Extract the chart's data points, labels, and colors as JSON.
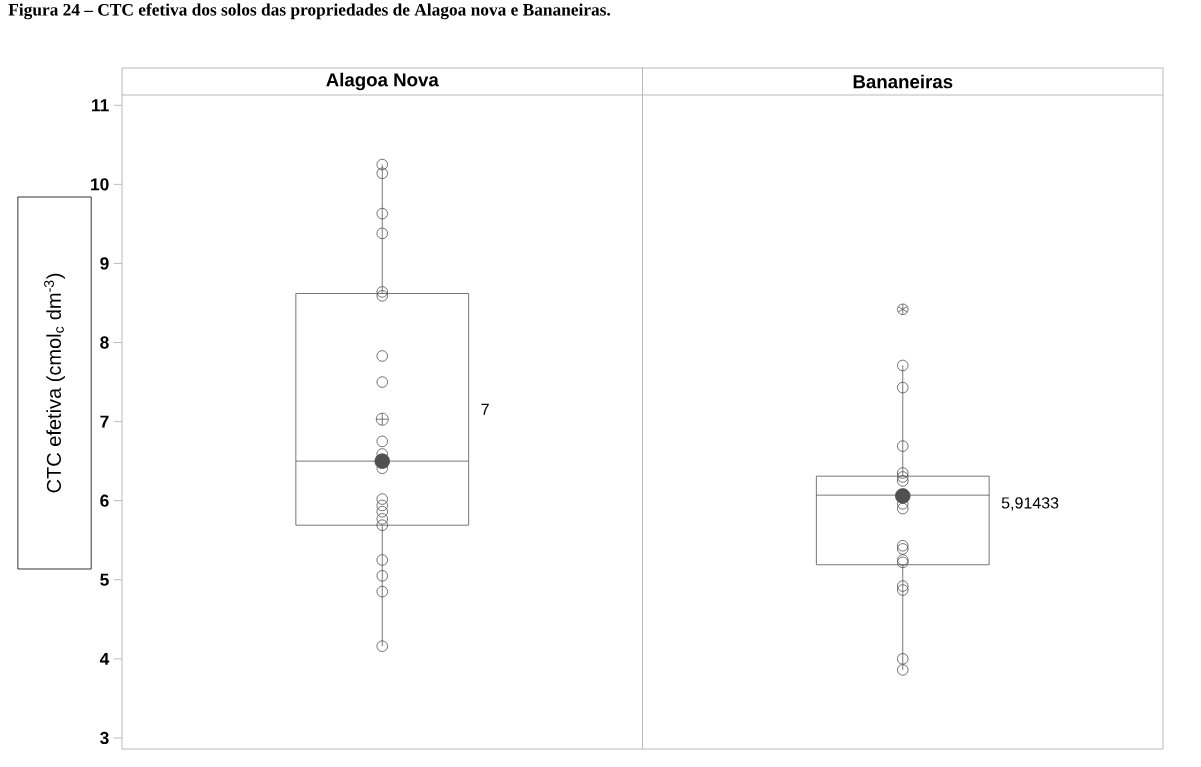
{
  "chart_data": {
    "type": "box",
    "title": "Figura 24 – CTC efetiva dos solos das propriedades de Alagoa nova e Bananeiras.",
    "ylabel": "CTC efetiva (cmol$_{c}$ dm$^{-3}$)",
    "categories": [
      "Alagoa Nova",
      "Bananeiras"
    ],
    "boxes": [
      {
        "low": 4.16,
        "q1": 5.69,
        "median": 6.5,
        "q3": 8.62,
        "high": 10.25,
        "mean": 7.03
      },
      {
        "low": 3.86,
        "q1": 5.19,
        "median": 6.07,
        "q3": 6.31,
        "high": 7.71,
        "outliers": [
          8.42
        ]
      }
    ],
    "series": [
      {
        "type": "scatter",
        "color": "#505050",
        "x": [
          "Alagoa Nova",
          "Alagoa Nova",
          "Alagoa Nova",
          "Alagoa Nova",
          "Alagoa Nova",
          "Alagoa Nova",
          "Alagoa Nova",
          "Alagoa Nova",
          "Alagoa Nova",
          "Alagoa Nova",
          "Alagoa Nova",
          "Alagoa Nova",
          "Alagoa Nova",
          "Alagoa Nova",
          "Alagoa Nova",
          "Alagoa Nova",
          "Alagoa Nova",
          "Alagoa Nova",
          "Alagoa Nova",
          "Alagoa Nova",
          "Bananeiras",
          "Bananeiras",
          "Bananeiras",
          "Bananeiras",
          "Bananeiras",
          "Bananeiras",
          "Bananeiras",
          "Bananeiras",
          "Bananeiras",
          "Bananeiras",
          "Bananeiras",
          "Bananeiras",
          "Bananeiras",
          "Bananeiras",
          "Bananeiras",
          "Bananeiras"
        ],
        "values": [
          10.25,
          10.14,
          9.63,
          9.38,
          8.64,
          8.59,
          7.83,
          7.5,
          6.75,
          6.59,
          6.41,
          6.02,
          5.94,
          5.86,
          5.77,
          5.69,
          5.25,
          5.05,
          4.85,
          4.16,
          7.71,
          7.43,
          6.69,
          6.35,
          6.3,
          6.25,
          5.96,
          5.9,
          5.43,
          5.39,
          5.25,
          5.22,
          4.92,
          4.87,
          4.0,
          3.86
        ]
      },
      {
        "type": "scatter",
        "color": "#505050",
        "x": [
          "Alagoa Nova",
          "Bananeiras"
        ],
        "values": [
          6.5,
          6.06
        ]
      }
    ],
    "marker": "circle",
    "annotations": [
      "7",
      "5,91433"
    ],
    "ylim": [
      2.86,
      11.13
    ],
    "yticks": [
      3,
      4,
      5,
      6,
      7,
      8,
      9,
      10,
      11
    ],
    "grid": false
  }
}
